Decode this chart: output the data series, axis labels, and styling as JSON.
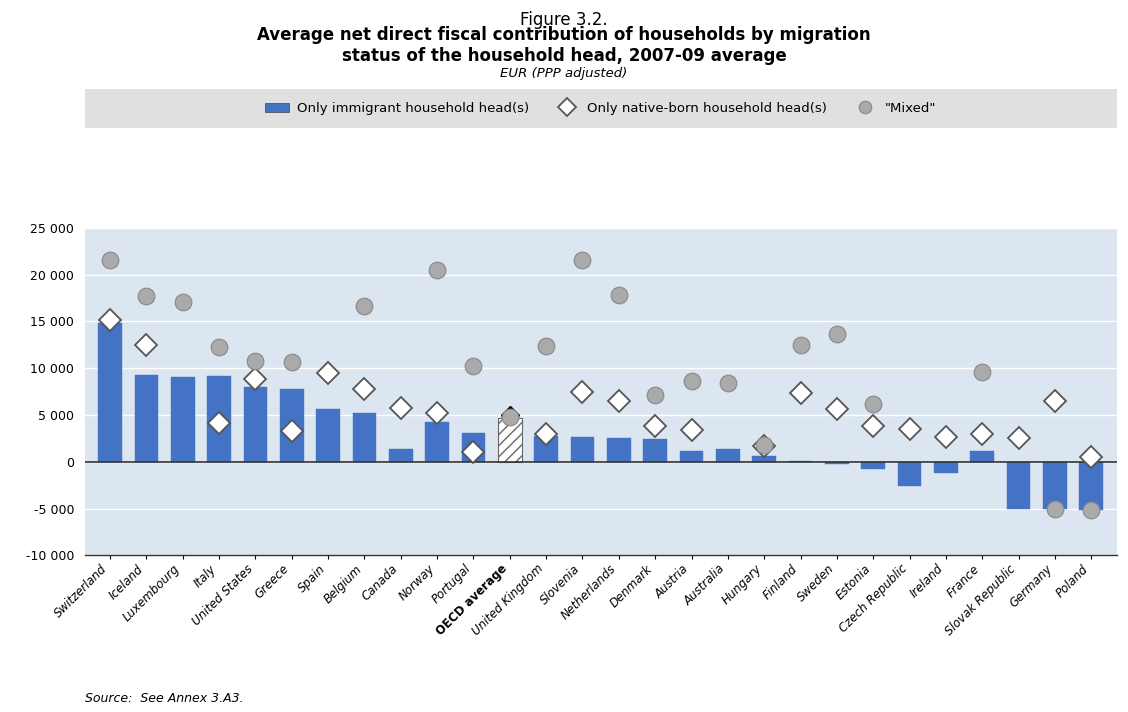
{
  "countries": [
    "Switzerland",
    "Iceland",
    "Luxembourg",
    "Italy",
    "United States",
    "Greece",
    "Spain",
    "Belgium",
    "Canada",
    "Norway",
    "Portugal",
    "OECD average",
    "United Kingdom",
    "Slovenia",
    "Netherlands",
    "Denmark",
    "Austria",
    "Australia",
    "Hungary",
    "Finland",
    "Sweden",
    "Estonia",
    "Czech Republic",
    "Ireland",
    "France",
    "Slovak Republic",
    "Germany",
    "Poland"
  ],
  "bar_values": [
    14800,
    9300,
    9100,
    9200,
    8000,
    7800,
    5600,
    5200,
    1400,
    4200,
    3100,
    4700,
    2800,
    2600,
    2500,
    2400,
    1200,
    1400,
    600,
    100,
    -200,
    -800,
    -2600,
    -1200,
    1200,
    -5000,
    -5000,
    -5200
  ],
  "native_values": [
    15100,
    12500,
    null,
    4100,
    8800,
    3300,
    9500,
    7800,
    5700,
    5200,
    1000,
    5000,
    3000,
    7500,
    6500,
    3800,
    3400,
    null,
    1700,
    7300,
    5600,
    3800,
    3500,
    2700,
    3000,
    2500,
    6500,
    500
  ],
  "mixed_values": [
    21600,
    17700,
    17100,
    12300,
    10800,
    10700,
    null,
    16700,
    null,
    20500,
    10200,
    4800,
    12400,
    21600,
    17800,
    7100,
    8600,
    8400,
    1800,
    12500,
    13700,
    6200,
    null,
    null,
    9600,
    null,
    -5000,
    -5200
  ],
  "oecd_avg_index": 11,
  "bar_color": "#4472C4",
  "background_color": "#dce6f1",
  "grid_color": "#ffffff",
  "source": "Source:  See Annex 3.A3.",
  "ylim": [
    -10000,
    25000
  ],
  "yticks": [
    -10000,
    -5000,
    0,
    5000,
    10000,
    15000,
    20000,
    25000
  ],
  "legend_labels": [
    "Only immigrant household head(s)",
    "Only native-born household head(s)",
    "\"Mixed\""
  ],
  "legend_bg": "#e8e8e8"
}
